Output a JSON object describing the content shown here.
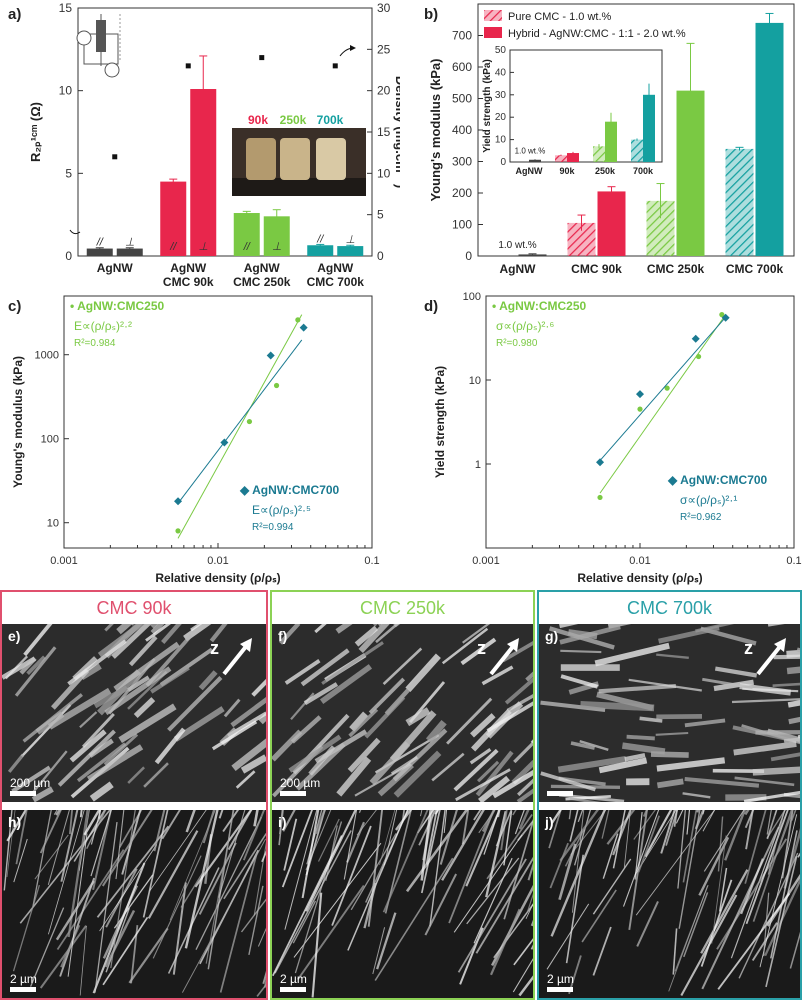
{
  "panel_a": {
    "letter": "a)",
    "inset_labels": [
      "90k",
      "250k",
      "700k"
    ],
    "inset_label_colors": [
      "#e8264c",
      "#7ac943",
      "#14a0a0"
    ],
    "chart_data": {
      "type": "bar",
      "categories": [
        [
          "AgNW"
        ],
        [
          "AgNW",
          "CMC 90k"
        ],
        [
          "AgNW",
          "CMC 250k"
        ],
        [
          "AgNW",
          "CMC 700k"
        ]
      ],
      "series": [
        {
          "name": "R2P1cm parallel (//)",
          "values": [
            0.45,
            4.5,
            2.6,
            0.65
          ],
          "errors": [
            0.05,
            0.15,
            0.1,
            0.05
          ],
          "colors": [
            "#444444",
            "#e8264c",
            "#7ac943",
            "#14a0a0"
          ]
        },
        {
          "name": "R2P1cm perpendicular (⊥)",
          "values": [
            0.45,
            10.1,
            2.4,
            0.6
          ],
          "errors": [
            0.05,
            2.0,
            0.4,
            0.05
          ],
          "colors": [
            "#444444",
            "#e8264c",
            "#7ac943",
            "#14a0a0"
          ]
        }
      ],
      "density": {
        "name": "Density",
        "values": [
          12,
          23,
          24,
          23
        ]
      },
      "bar_marks": [
        "//",
        "⊥",
        "//",
        "⊥",
        "//",
        "⊥",
        "//",
        "⊥"
      ],
      "ylabel_left": "R₂ₚ¹ᶜᵐ (Ω)",
      "ylabel_right": "Density (mg.cm⁻³)",
      "ylim_left": [
        0,
        15
      ],
      "ylim_right": [
        0,
        30
      ],
      "yticks_left": [
        "0",
        "5",
        "10",
        "15"
      ],
      "yticks_right": [
        "0",
        "5",
        "10",
        "15",
        "20",
        "25",
        "30"
      ]
    }
  },
  "panel_b": {
    "letter": "b)",
    "legend": [
      "Pure CMC - 1.0 wt.%",
      "Hybrid - AgNW:CMC - 1:1 - 2.0 wt.%"
    ],
    "annotation": "1.0 wt.%",
    "chart_data": {
      "type": "bar",
      "categories": [
        "AgNW",
        "CMC 90k",
        "CMC 250k",
        "CMC 700k"
      ],
      "series": [
        {
          "name": "Pure CMC - 1.0 wt.%",
          "values": [
            null,
            105,
            175,
            340
          ],
          "errors": [
            0,
            25,
            55,
            5
          ],
          "colors": [
            "#e8264c",
            "#e8264c",
            "#7ac943",
            "#14a0a0"
          ]
        },
        {
          "name": "Hybrid - AgNW:CMC - 1:1 - 2.0 wt.%",
          "values": [
            5,
            205,
            525,
            740
          ],
          "errors": [
            2,
            15,
            150,
            30
          ],
          "colors": [
            "#444444",
            "#e8264c",
            "#7ac943",
            "#14a0a0"
          ]
        }
      ],
      "ylabel": "Young's modulus (kPa)",
      "ylim": [
        0,
        800
      ],
      "yticks": [
        "0",
        "100",
        "200",
        "300",
        "400",
        "500",
        "600",
        "700"
      ]
    },
    "inset": {
      "annotation": "1.0 wt.%",
      "chart_data": {
        "type": "bar",
        "categories": [
          "AgNW",
          "90k",
          "250k",
          "700k"
        ],
        "series": [
          {
            "name": "Pure CMC",
            "values": [
              null,
              3,
              7,
              10
            ],
            "errors": [
              0,
              0.3,
              1,
              0.5
            ]
          },
          {
            "name": "Hybrid",
            "values": [
              1,
              4,
              18,
              30
            ],
            "errors": [
              0.2,
              0.5,
              4,
              5
            ]
          }
        ],
        "ylabel": "Yield strength (kPa)",
        "ylim": [
          0,
          50
        ],
        "yticks": [
          "0",
          "10",
          "20",
          "30",
          "40",
          "50"
        ]
      }
    }
  },
  "panel_c": {
    "letter": "c)",
    "chart_data": {
      "type": "scatter",
      "xscale": "log",
      "yscale": "log",
      "xlim": [
        0.001,
        0.1
      ],
      "ylim": [
        5,
        5000
      ],
      "xticks": [
        "0.001",
        "0.01",
        "0.1"
      ],
      "yticks": [
        "10",
        "100",
        "1000"
      ],
      "xlabel": "Relative density (ρ/ρₛ)",
      "ylabel": "Young's modulus (kPa)",
      "series": [
        {
          "name": "AgNW:CMC250",
          "color": "#7ac943",
          "x": [
            0.0055,
            0.016,
            0.024,
            0.033
          ],
          "y": [
            8,
            160,
            430,
            2600
          ],
          "fit_x": [
            0.0055,
            0.035
          ],
          "fit_y": [
            6.5,
            3000
          ]
        },
        {
          "name": "AgNW:CMC700",
          "color": "#1b7a91",
          "x": [
            0.0055,
            0.011,
            0.022,
            0.036
          ],
          "y": [
            18,
            90,
            980,
            2100
          ],
          "fit_x": [
            0.0055,
            0.035
          ],
          "fit_y": [
            17,
            1500
          ]
        }
      ],
      "annotations": {
        "cmc250_name": "AgNW:CMC250",
        "cmc250_eq": "E∝(ρ/ρₛ)²·²",
        "cmc250_r2": "R²=0.984",
        "cmc700_name": "AgNW:CMC700",
        "cmc700_eq": "E∝(ρ/ρₛ)²·⁵",
        "cmc700_r2": "R²=0.994"
      }
    }
  },
  "panel_d": {
    "letter": "d)",
    "chart_data": {
      "type": "scatter",
      "xscale": "log",
      "yscale": "log",
      "xlim": [
        0.001,
        0.1
      ],
      "ylim": [
        0.1,
        100
      ],
      "xticks": [
        "0.001",
        "0.01",
        "0.1"
      ],
      "yticks": [
        "1",
        "10",
        "100"
      ],
      "xlabel": "Relative density (ρ/ρₛ)",
      "ylabel": "Yield strength (kPa)",
      "series": [
        {
          "name": "AgNW:CMC250",
          "color": "#7ac943",
          "x": [
            0.0055,
            0.01,
            0.015,
            0.024,
            0.034
          ],
          "y": [
            0.4,
            4.5,
            8,
            19,
            60
          ],
          "fit_x": [
            0.0055,
            0.036
          ],
          "fit_y": [
            0.45,
            60
          ]
        },
        {
          "name": "AgNW:CMC700",
          "color": "#1b7a91",
          "x": [
            0.0055,
            0.01,
            0.023,
            0.036
          ],
          "y": [
            1.05,
            6.8,
            31,
            55
          ],
          "fit_x": [
            0.0055,
            0.036
          ],
          "fit_y": [
            1.1,
            56
          ]
        }
      ],
      "annotations": {
        "cmc250_name": "AgNW:CMC250",
        "cmc250_eq": "σ∝(ρ/ρₛ)²·⁶",
        "cmc250_r2": "R²=0.980",
        "cmc700_name": "AgNW:CMC700",
        "cmc700_eq": "σ∝(ρ/ρₛ)²·¹",
        "cmc700_r2": "R²=0.962"
      }
    }
  },
  "sem": {
    "columns": [
      {
        "title": "CMC 90k",
        "color": "#e0506e",
        "top_letter": "e)",
        "bottom_letter": "h)",
        "top_scale": "200 µm",
        "bottom_scale": "2 µm"
      },
      {
        "title": "CMC 250k",
        "color": "#8cd255",
        "top_letter": "f)",
        "bottom_letter": "i)",
        "top_scale": "200 µm",
        "bottom_scale": "2 µm"
      },
      {
        "title": "CMC 700k",
        "color": "#2aa0a8",
        "top_letter": "g)",
        "bottom_letter": "j)",
        "top_scale": "",
        "bottom_scale": "2 µm"
      }
    ],
    "z_label": "z"
  }
}
